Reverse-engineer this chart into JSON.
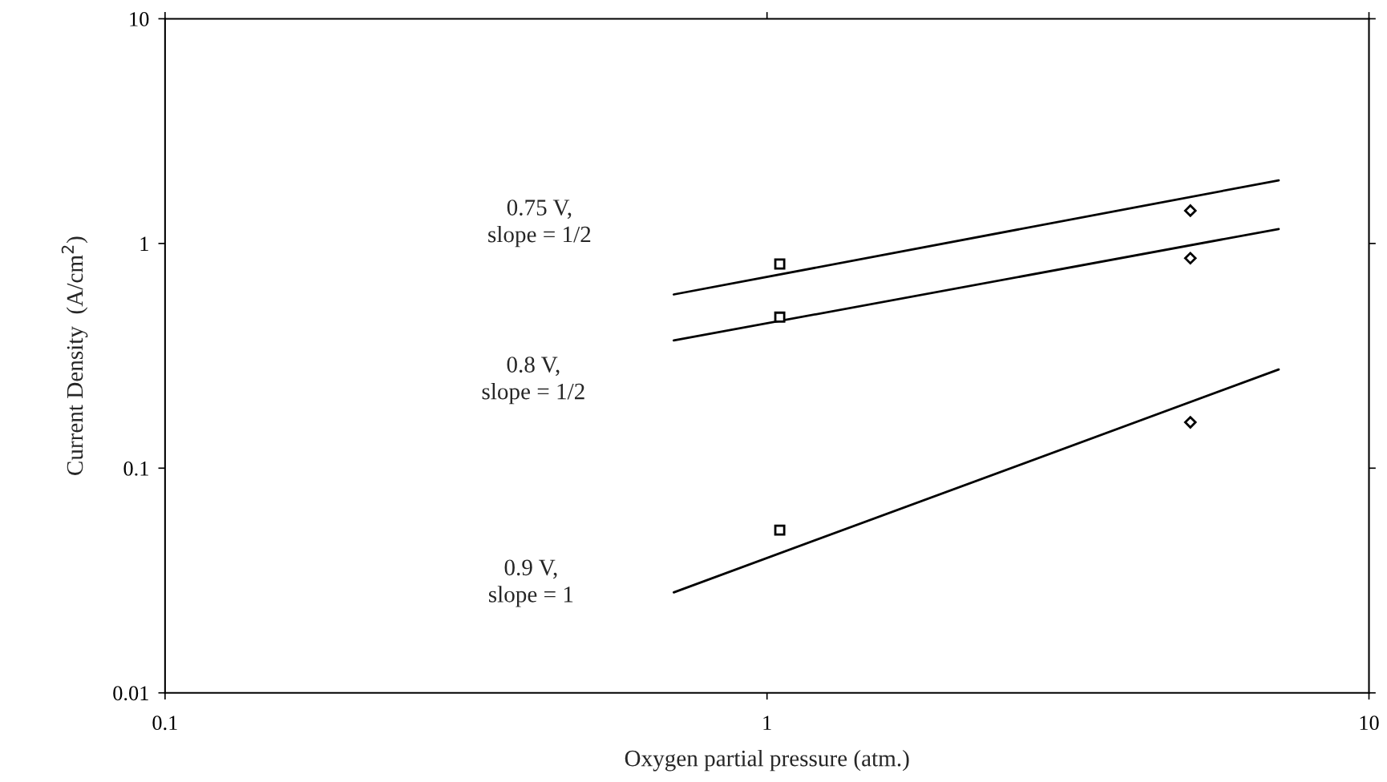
{
  "chart_data": {
    "type": "line",
    "xlabel": "Oxygen partial pressure (atm.)",
    "ylabel": "Current Density  (A/cm$^{2}$)",
    "log": "xy",
    "xlim": [
      0.1,
      10
    ],
    "xticks": [
      0.1,
      1,
      10
    ],
    "ylim": [
      0.01,
      10
    ],
    "yticks": [
      0.01,
      0.1,
      1,
      10
    ],
    "grid": false,
    "legend": false,
    "series": [
      {
        "color": "#000000",
        "x": [
          0.7,
          7.08
        ],
        "values": [
          0.593,
          1.91
        ],
        "marker": "none",
        "line_style": "solid"
      },
      {
        "color": "#000000",
        "x": [
          0.7,
          7.08
        ],
        "values": [
          0.37,
          1.16
        ],
        "marker": "none",
        "line_style": "solid"
      },
      {
        "color": "#000000",
        "x": [
          0.7,
          7.08
        ],
        "values": [
          0.028,
          0.275
        ],
        "marker": "none",
        "line_style": "solid"
      },
      {
        "type": "scatter",
        "color": "#000000",
        "x": [
          1.05,
          1.05,
          1.05
        ],
        "values": [
          0.81,
          0.47,
          0.053
        ],
        "marker": "square"
      },
      {
        "type": "scatter",
        "color": "#000000",
        "x": [
          5.05,
          5.05,
          5.05
        ],
        "values": [
          1.4,
          0.86,
          0.16
        ],
        "marker": "diamond"
      }
    ],
    "annotations": [
      "0.75 V,\nslope = 1/2",
      "0.8 V,\nslope = 1/2",
      "0.9 V,\nslope = 1"
    ]
  }
}
